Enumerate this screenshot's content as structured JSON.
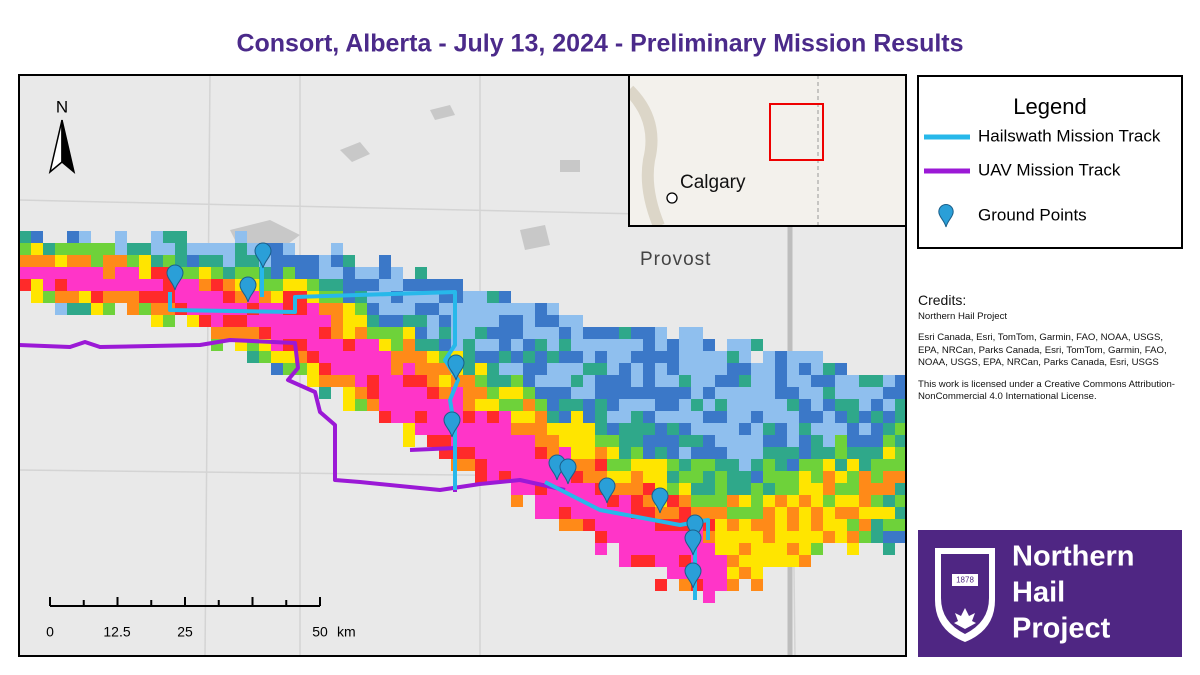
{
  "title": "Consort, Alberta - July 13, 2024 - Preliminary Mission Results",
  "map": {
    "north_label": "N",
    "scale_bar": {
      "labels": [
        "0",
        "12.5",
        "25",
        "50"
      ],
      "unit": "km"
    },
    "places": [
      "Provost",
      "Calgary"
    ]
  },
  "legend": {
    "title": "Legend",
    "items": [
      {
        "label": "Hailswath Mission Track",
        "color": "#27b8ea"
      },
      {
        "label": "UAV Mission Track",
        "color": "#9b19d6"
      },
      {
        "label": "Ground Points",
        "color": "#2a9fd8"
      }
    ]
  },
  "credits": {
    "heading": "Credits:",
    "paragraphs": [
      "Northern Hail Project",
      "Esri Canada, Esri, TomTom, Garmin, FAO, NOAA, USGS, EPA, NRCan, Parks Canada, Esri, TomTom, Garmin, FAO, NOAA, USGS, EPA, NRCan, Parks Canada, Esri, USGS",
      "This work is licensed under a Creative Commons Attribution-NonCommercial 4.0 International License."
    ]
  },
  "logo": {
    "lines": [
      "Northern",
      "Hail",
      "Project"
    ],
    "year": "1878"
  }
}
